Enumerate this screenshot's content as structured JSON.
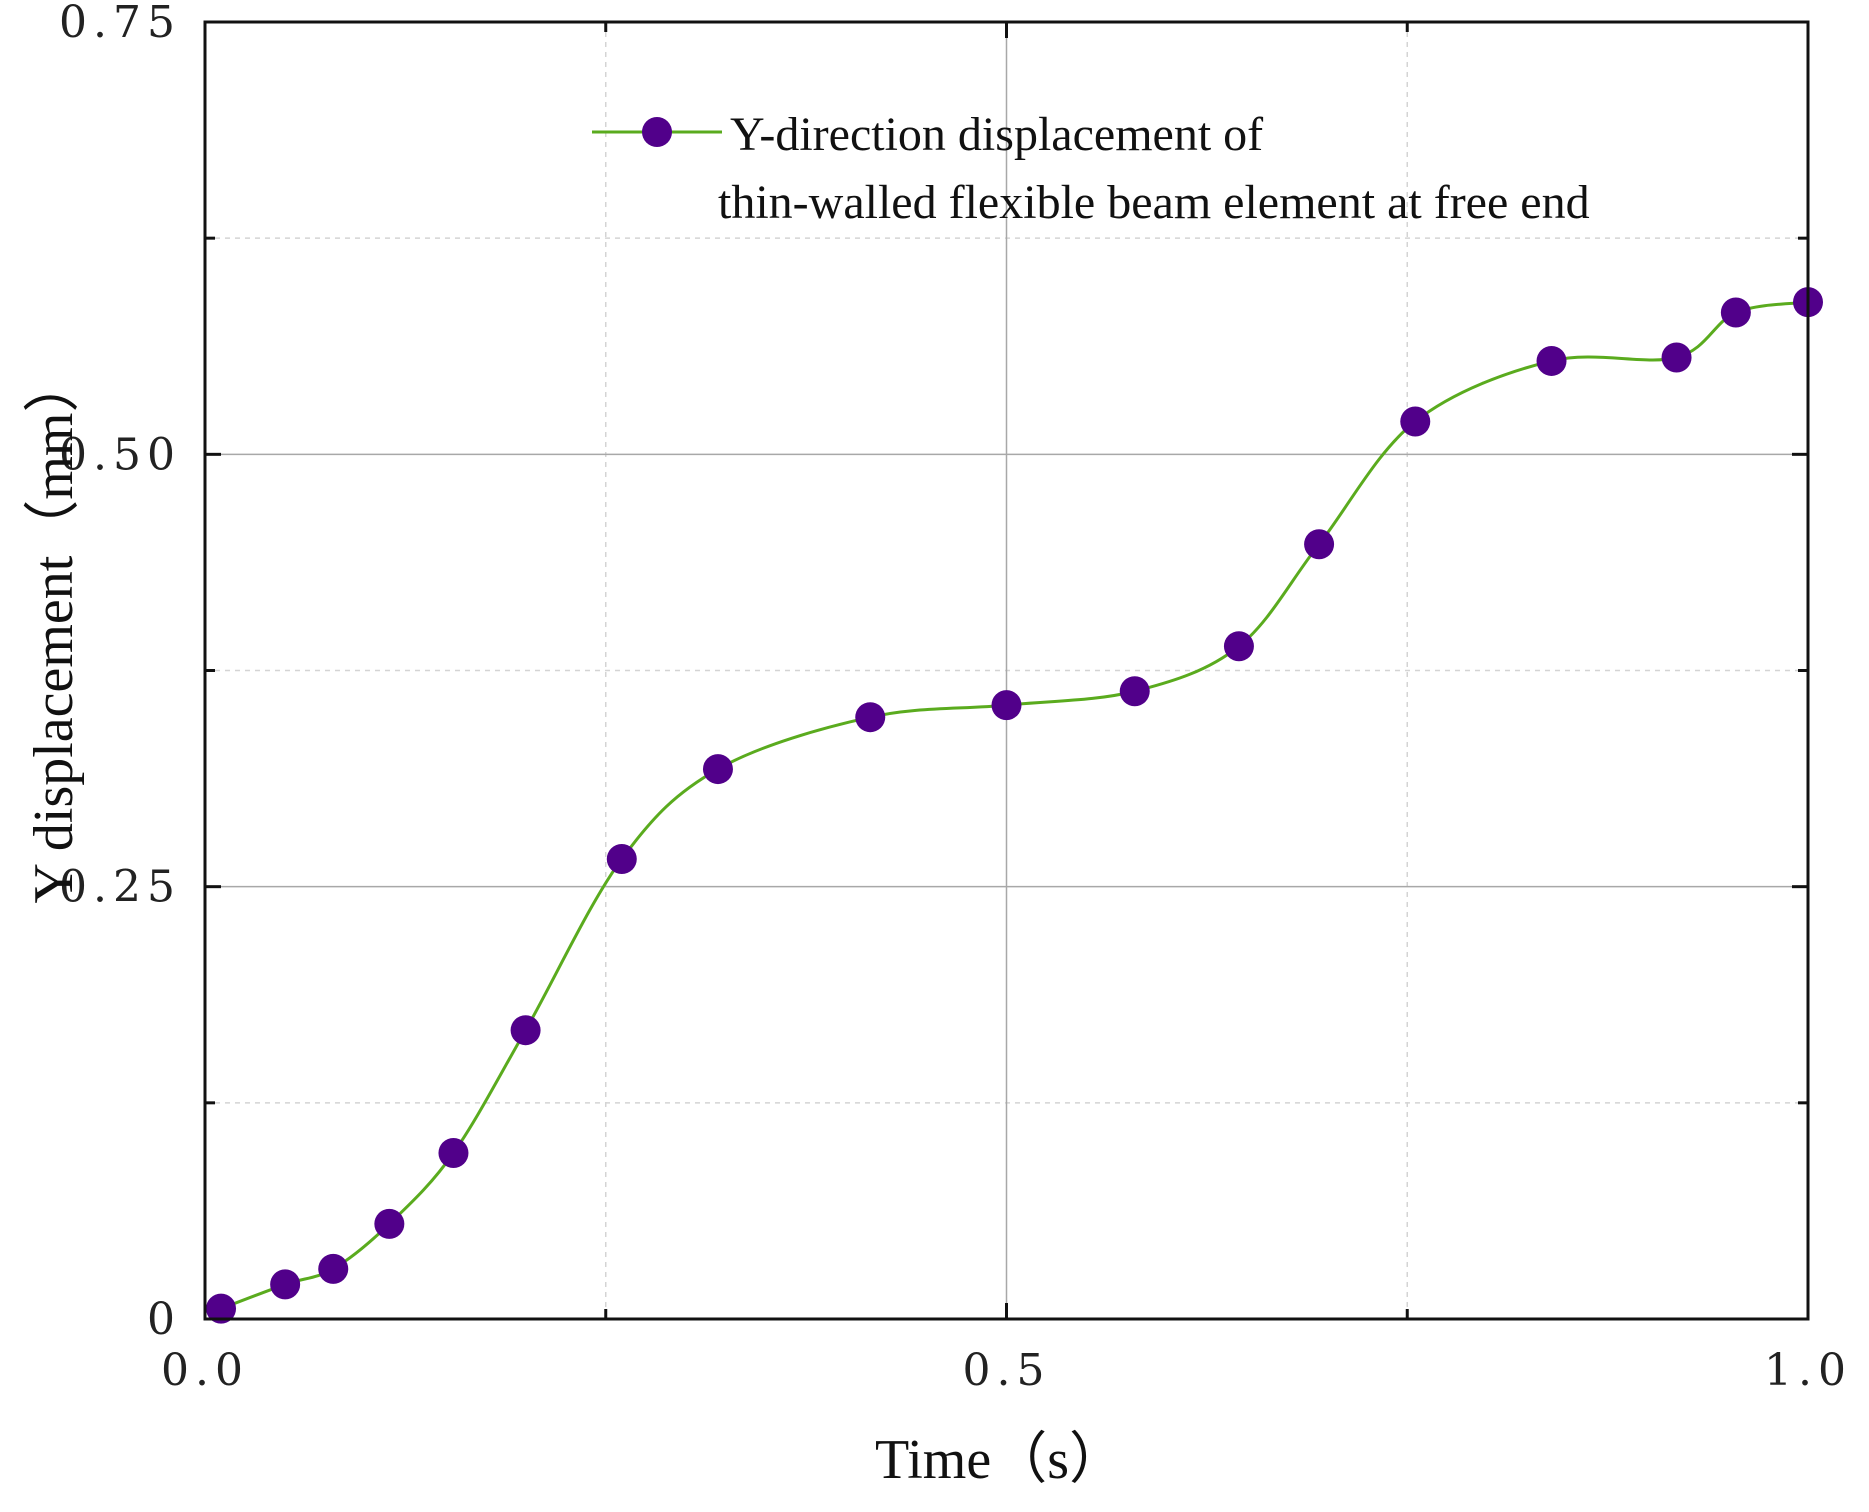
{
  "chart_data": {
    "type": "line",
    "title": "",
    "xlabel": "Time（s）",
    "ylabel": "Y displacement（mm）",
    "xlim": [
      0.0,
      1.0
    ],
    "ylim": [
      0,
      0.75
    ],
    "x_ticks": [
      0.0,
      0.5,
      1.0
    ],
    "x_tick_labels": [
      "0.0",
      "0.5",
      "1.0"
    ],
    "x_minor_ticks": [
      0.25,
      0.75
    ],
    "y_ticks": [
      0,
      0.25,
      0.5,
      0.75
    ],
    "y_tick_labels": [
      "0",
      "0.25",
      "0.50",
      "0.75"
    ],
    "y_minor_ticks": [
      0.125,
      0.375,
      0.625
    ],
    "grid": true,
    "legend_position": "top-right",
    "series": [
      {
        "name": "Y-direction displacement of thin-walled flexible beam element at free end",
        "legend_lines": [
          "Y-direction displacement of",
          "thin-walled flexible beam element at free end"
        ],
        "line_color": "#5aab1e",
        "marker_color": "#51008a",
        "x": [
          0.01,
          0.05,
          0.08,
          0.115,
          0.155,
          0.2,
          0.26,
          0.32,
          0.415,
          0.5,
          0.58,
          0.645,
          0.695,
          0.755,
          0.84,
          0.918,
          0.955,
          1.0
        ],
        "y": [
          0.006,
          0.02,
          0.029,
          0.055,
          0.096,
          0.167,
          0.266,
          0.318,
          0.348,
          0.355,
          0.363,
          0.389,
          0.448,
          0.519,
          0.554,
          0.556,
          0.582,
          0.588
        ]
      }
    ]
  }
}
